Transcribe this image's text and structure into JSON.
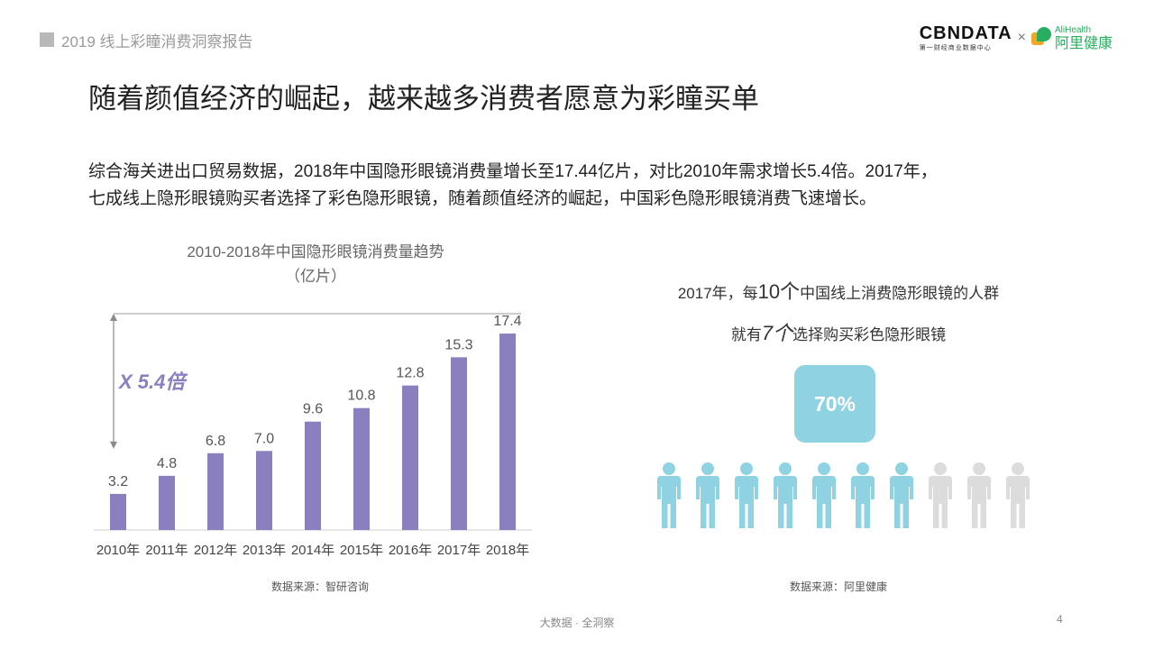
{
  "header": {
    "report_tag": "2019 线上彩瞳消费洞察报告",
    "logo_cbn": "CBNDATA",
    "logo_cbn_sub": "第一财经商业数据中心",
    "logo_times": "×",
    "logo_ali_en": "AliHealth",
    "logo_ali_cn": "阿里健康"
  },
  "headline": "随着颜值经济的崛起，越来越多消费者愿意为彩瞳买单",
  "intro": {
    "line1": "综合海关进出口贸易数据，2018年中国隐形眼镜消费量增长至17.44亿片，对比2010年需求增长5.4倍。2017年，",
    "line2": "七成线上隐形眼镜购买者选择了彩色隐形眼镜，随着颜值经济的崛起，中国彩色隐形眼镜消费飞速增长。"
  },
  "chart_data": {
    "type": "bar",
    "title": "2010-2018年中国隐形眼镜消费量趋势",
    "subtitle": "（亿片）",
    "categories": [
      "2010年",
      "2011年",
      "2012年",
      "2013年",
      "2014年",
      "2015年",
      "2016年",
      "2017年",
      "2018年"
    ],
    "values": [
      3.2,
      4.8,
      6.8,
      7.0,
      9.6,
      10.8,
      12.8,
      15.3,
      17.4
    ],
    "value_labels": [
      "3.2",
      "4.8",
      "6.8",
      "7.0",
      "9.6",
      "10.8",
      "12.8",
      "15.3",
      "17.4"
    ],
    "ylim": [
      0,
      19
    ],
    "grid": false,
    "bar_color": "#8b7fc0",
    "annotation": "X 5.4倍",
    "annotation_color": "#8b7fc0"
  },
  "ratio": {
    "title1_pre": "2017年，每",
    "title1_big": "10个",
    "title1_post": "中国线上消费隐形眼镜的人群",
    "title2_pre": "就有",
    "title2_big": "7个",
    "title2_post": "选择购买彩色隐形眼镜",
    "percent_label": "70%",
    "total": 10,
    "highlighted": 7,
    "highlight_color": "#8fd3e3",
    "rest_color": "#dcdcdc"
  },
  "sources": {
    "left": "数据来源：智研咨询",
    "right": "数据来源：阿里健康"
  },
  "footer": {
    "text": "大数据 · 全洞察",
    "page": "4"
  }
}
